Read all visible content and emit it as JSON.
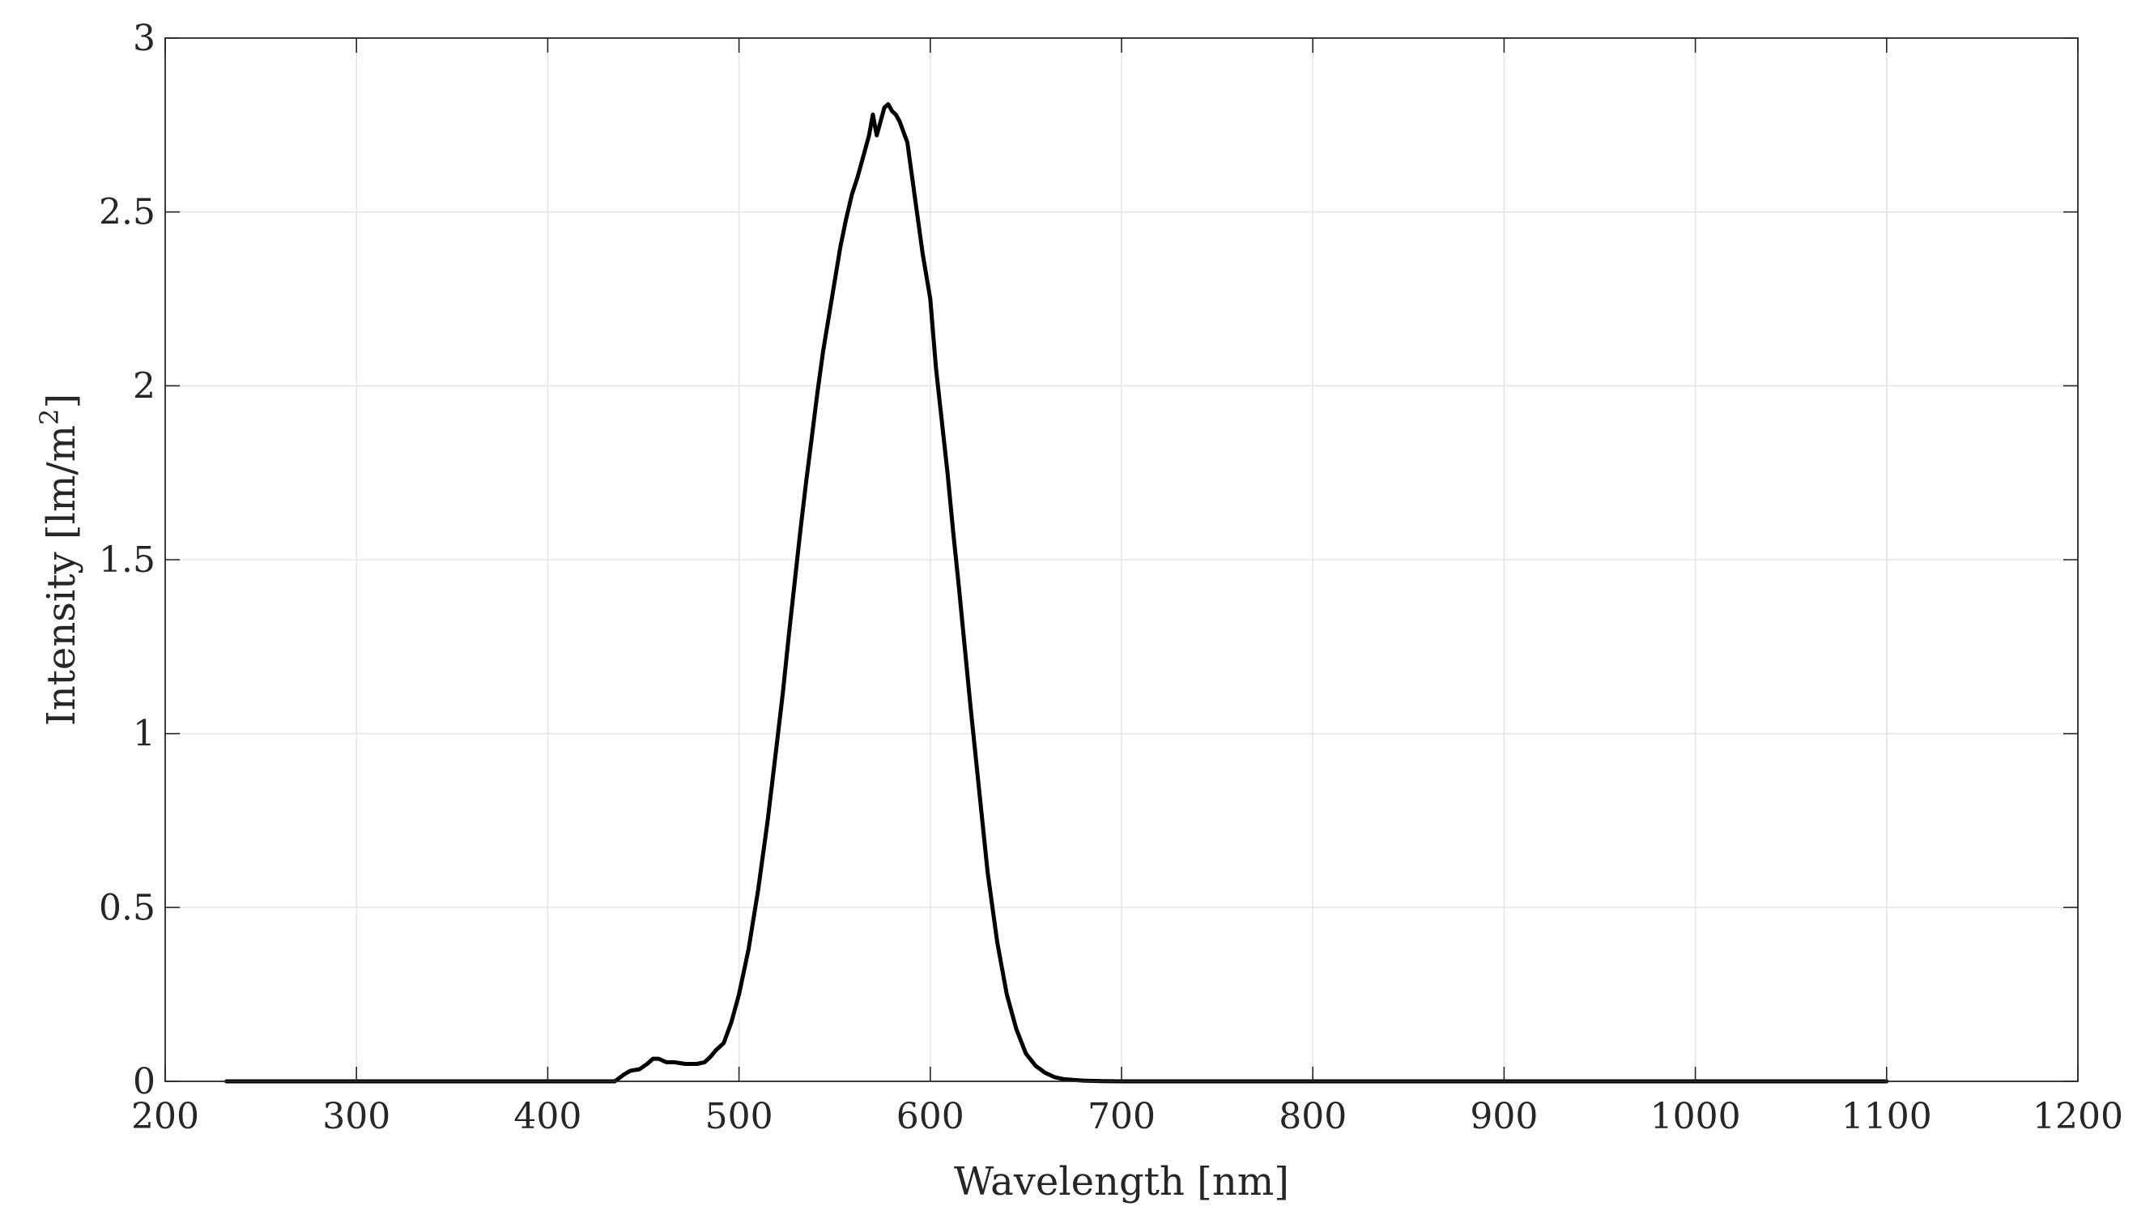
{
  "chart_data": {
    "type": "line",
    "title": "",
    "xlabel": "Wavelength [nm]",
    "ylabel": "Intensity [lm/m",
    "ylabel_superscript": "2",
    "ylabel_suffix": "]",
    "xlim": [
      200,
      1200
    ],
    "ylim": [
      0,
      3
    ],
    "grid": true,
    "x_ticks": [
      200,
      300,
      400,
      500,
      600,
      700,
      800,
      900,
      1000,
      1100,
      1200
    ],
    "x_tick_labels": [
      "200",
      "300",
      "400",
      "500",
      "600",
      "700",
      "800",
      "900",
      "1000",
      "1100",
      "1200"
    ],
    "y_ticks": [
      0,
      0.5,
      1,
      1.5,
      2,
      2.5,
      3
    ],
    "y_tick_labels": [
      "0",
      "0.5",
      "1",
      "1.5",
      "2",
      "2.5",
      "3"
    ],
    "series": [
      {
        "color": "#000000",
        "x": [
          232,
          300,
          400,
          435,
          440,
          443,
          448,
          452,
          455,
          458,
          462,
          466,
          472,
          478,
          482,
          485,
          488,
          492,
          496,
          500,
          505,
          510,
          515,
          520,
          523,
          526,
          529,
          532,
          535,
          538,
          541,
          544,
          547,
          550,
          553,
          556,
          559,
          562,
          565,
          568,
          570,
          572,
          574,
          576,
          578,
          580,
          582,
          584,
          586,
          588,
          590,
          593,
          596,
          600,
          603,
          606,
          609,
          612,
          615,
          618,
          621,
          624,
          627,
          630,
          635,
          640,
          645,
          650,
          655,
          660,
          665,
          670,
          680,
          690,
          700,
          720,
          750,
          800,
          900,
          1000,
          1100
        ],
        "y": [
          0.0,
          0.0,
          0.0,
          0.0,
          0.02,
          0.03,
          0.035,
          0.05,
          0.065,
          0.065,
          0.055,
          0.055,
          0.05,
          0.05,
          0.055,
          0.07,
          0.09,
          0.11,
          0.17,
          0.25,
          0.38,
          0.55,
          0.75,
          0.98,
          1.12,
          1.28,
          1.43,
          1.58,
          1.72,
          1.85,
          1.98,
          2.1,
          2.2,
          2.3,
          2.4,
          2.48,
          2.55,
          2.6,
          2.66,
          2.72,
          2.78,
          2.72,
          2.76,
          2.8,
          2.81,
          2.79,
          2.78,
          2.76,
          2.73,
          2.7,
          2.62,
          2.5,
          2.38,
          2.25,
          2.05,
          1.9,
          1.75,
          1.58,
          1.42,
          1.25,
          1.08,
          0.92,
          0.76,
          0.6,
          0.4,
          0.25,
          0.15,
          0.08,
          0.045,
          0.025,
          0.012,
          0.006,
          0.002,
          0.0005,
          0.0,
          0.0,
          0.0,
          0.0,
          0.0,
          0.0,
          0.0
        ]
      }
    ]
  }
}
